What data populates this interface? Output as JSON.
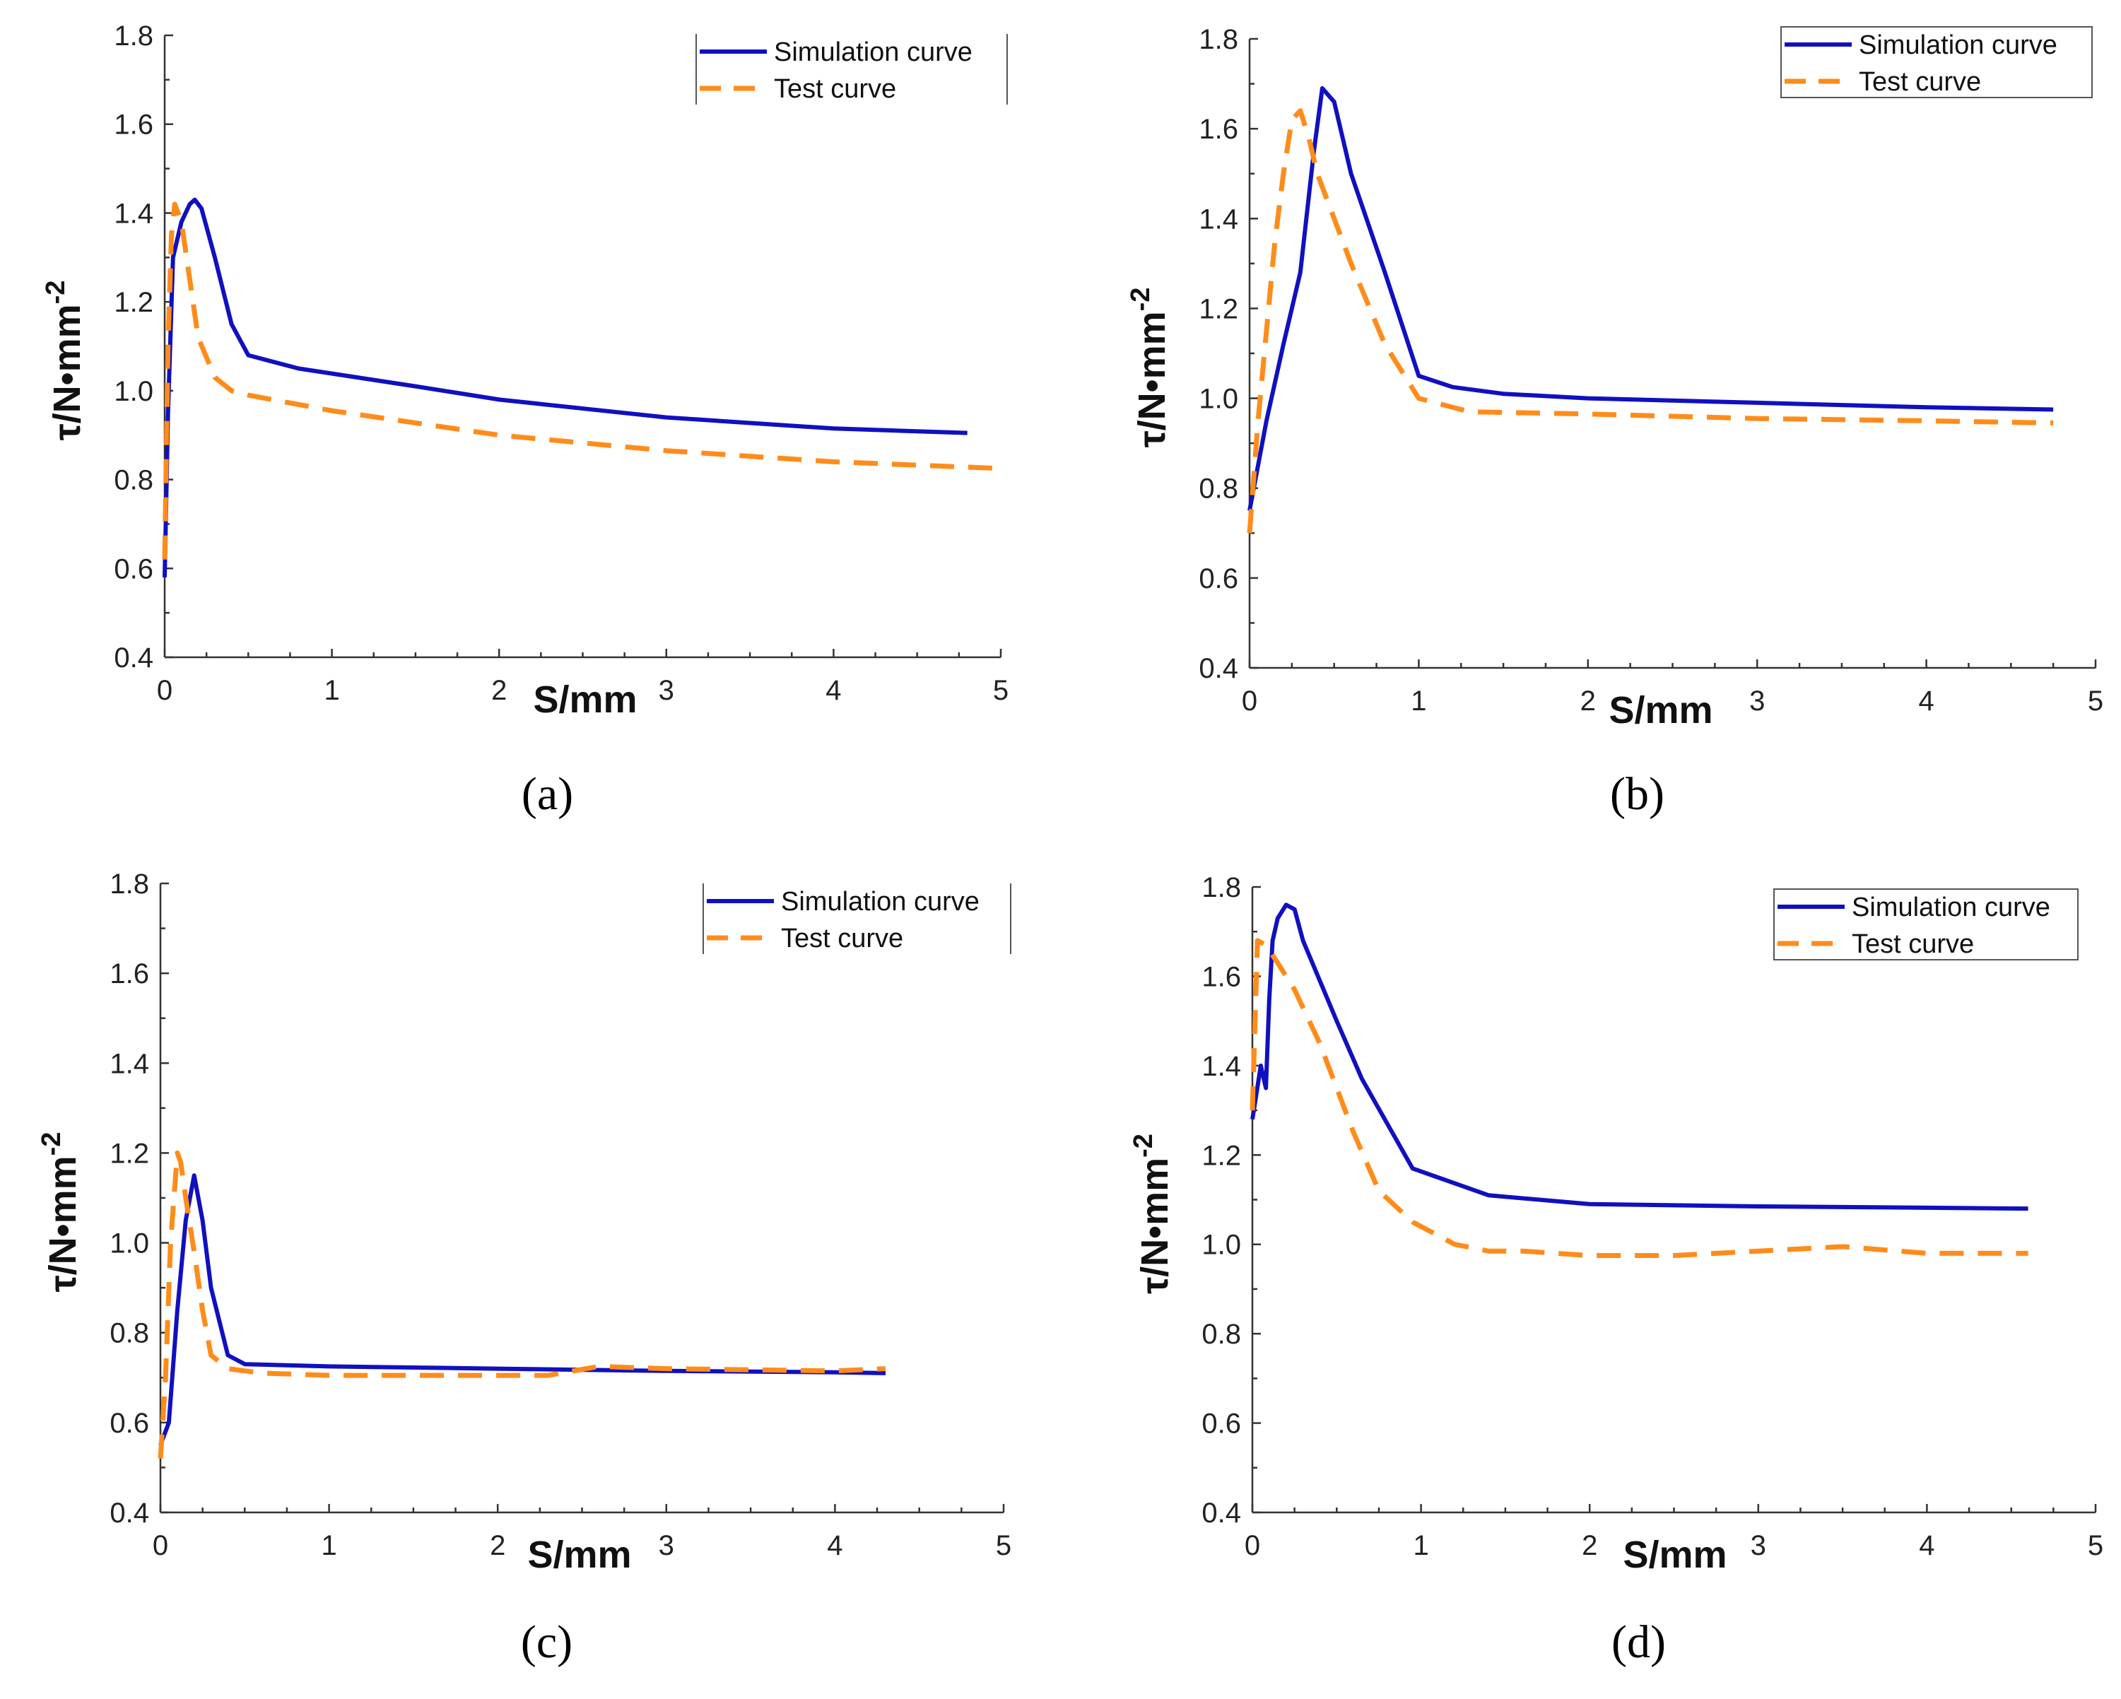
{
  "colors": {
    "simulation": "#1010c0",
    "test": "#ff8c1a",
    "axis": "#333333"
  },
  "chart_data": [
    {
      "type": "line",
      "panel_label": "(a)",
      "xlabel": "S/mm",
      "ylabel": "τ/N•mm",
      "ylabel_sup": "-2",
      "xlim": [
        0,
        5
      ],
      "ylim": [
        0.4,
        1.8
      ],
      "xticks": [
        "0",
        "1",
        "2",
        "3",
        "4",
        "5"
      ],
      "yticks": [
        "0.4",
        "0.6",
        "0.8",
        "1.0",
        "1.2",
        "1.4",
        "1.6",
        "1.8"
      ],
      "grid": false,
      "legend_box": "partial",
      "series": [
        {
          "name": "Simulation curve",
          "style": "solid",
          "x": [
            0,
            0.02,
            0.05,
            0.1,
            0.15,
            0.18,
            0.22,
            0.3,
            0.4,
            0.5,
            0.8,
            1.5,
            2.0,
            3.0,
            4.0,
            4.8
          ],
          "y": [
            0.58,
            0.95,
            1.3,
            1.38,
            1.42,
            1.43,
            1.41,
            1.3,
            1.15,
            1.08,
            1.05,
            1.01,
            0.98,
            0.94,
            0.915,
            0.905
          ]
        },
        {
          "name": "Test curve",
          "style": "dashed",
          "x": [
            0,
            0.02,
            0.04,
            0.06,
            0.1,
            0.15,
            0.2,
            0.3,
            0.4,
            0.5,
            1.0,
            2.0,
            3.0,
            4.0,
            5.0
          ],
          "y": [
            0.62,
            1.1,
            1.35,
            1.42,
            1.38,
            1.25,
            1.12,
            1.03,
            1.0,
            0.99,
            0.955,
            0.9,
            0.865,
            0.84,
            0.825
          ]
        }
      ]
    },
    {
      "type": "line",
      "panel_label": "(b)",
      "xlabel": "S/mm",
      "ylabel": "τ/N•mm",
      "ylabel_sup": "-2",
      "xlim": [
        0,
        5
      ],
      "ylim": [
        0.4,
        1.8
      ],
      "xticks": [
        "0",
        "1",
        "2",
        "3",
        "4",
        "5"
      ],
      "yticks": [
        "0.4",
        "0.6",
        "0.8",
        "1.0",
        "1.2",
        "1.4",
        "1.6",
        "1.8"
      ],
      "grid": false,
      "legend_box": "full",
      "series": [
        {
          "name": "Simulation curve",
          "style": "solid",
          "x": [
            0,
            0.1,
            0.2,
            0.3,
            0.38,
            0.43,
            0.5,
            0.6,
            0.8,
            1.0,
            1.2,
            1.5,
            2.0,
            2.5,
            3.0,
            4.0,
            4.75
          ],
          "y": [
            0.75,
            0.95,
            1.12,
            1.28,
            1.55,
            1.69,
            1.66,
            1.5,
            1.28,
            1.05,
            1.025,
            1.01,
            1.0,
            0.995,
            0.99,
            0.98,
            0.975
          ]
        },
        {
          "name": "Test curve",
          "style": "dashed",
          "x": [
            0,
            0.05,
            0.1,
            0.15,
            0.2,
            0.25,
            0.3,
            0.35,
            0.4,
            0.5,
            0.6,
            0.8,
            1.0,
            1.3,
            2.0,
            3.0,
            4.0,
            4.75
          ],
          "y": [
            0.7,
            0.95,
            1.15,
            1.35,
            1.5,
            1.62,
            1.64,
            1.58,
            1.5,
            1.4,
            1.3,
            1.12,
            1.0,
            0.97,
            0.965,
            0.955,
            0.95,
            0.945
          ]
        }
      ]
    },
    {
      "type": "line",
      "panel_label": "(c)",
      "xlabel": "S/mm",
      "ylabel": "τ/N•mm",
      "ylabel_sup": "-2",
      "xlim": [
        0,
        5
      ],
      "ylim": [
        0.4,
        1.8
      ],
      "xticks": [
        "0",
        "1",
        "2",
        "3",
        "4",
        "5"
      ],
      "yticks": [
        "0.4",
        "0.6",
        "0.8",
        "1.0",
        "1.2",
        "1.4",
        "1.6",
        "1.8"
      ],
      "grid": false,
      "legend_box": "partial",
      "series": [
        {
          "name": "Simulation curve",
          "style": "solid",
          "x": [
            0,
            0.05,
            0.1,
            0.15,
            0.2,
            0.25,
            0.3,
            0.4,
            0.5,
            1.0,
            2.0,
            3.0,
            4.0,
            4.3
          ],
          "y": [
            0.55,
            0.6,
            0.85,
            1.05,
            1.15,
            1.05,
            0.9,
            0.75,
            0.73,
            0.725,
            0.72,
            0.715,
            0.712,
            0.71
          ]
        },
        {
          "name": "Test curve",
          "style": "dashed",
          "x": [
            0,
            0.03,
            0.06,
            0.1,
            0.12,
            0.15,
            0.2,
            0.25,
            0.3,
            0.4,
            0.6,
            1.0,
            2.0,
            2.3,
            2.6,
            3.0,
            4.0,
            4.3
          ],
          "y": [
            0.52,
            0.7,
            1.0,
            1.2,
            1.18,
            1.1,
            0.98,
            0.85,
            0.75,
            0.72,
            0.71,
            0.705,
            0.705,
            0.705,
            0.725,
            0.72,
            0.715,
            0.72
          ]
        }
      ]
    },
    {
      "type": "line",
      "panel_label": "(d)",
      "xlabel": "S/mm",
      "ylabel": "τ/N•mm",
      "ylabel_sup": "-2",
      "xlim": [
        0,
        5
      ],
      "ylim": [
        0.4,
        1.8
      ],
      "xticks": [
        "0",
        "1",
        "2",
        "3",
        "4",
        "5"
      ],
      "yticks": [
        "0.4",
        "0.6",
        "0.8",
        "1.0",
        "1.2",
        "1.4",
        "1.6",
        "1.8"
      ],
      "grid": false,
      "legend_box": "full",
      "series": [
        {
          "name": "Simulation curve",
          "style": "solid",
          "x": [
            0,
            0.05,
            0.08,
            0.1,
            0.12,
            0.15,
            0.2,
            0.25,
            0.3,
            0.5,
            0.65,
            0.95,
            1.4,
            2.0,
            3.0,
            4.0,
            4.6
          ],
          "y": [
            1.28,
            1.4,
            1.35,
            1.55,
            1.68,
            1.73,
            1.76,
            1.75,
            1.68,
            1.5,
            1.37,
            1.17,
            1.11,
            1.09,
            1.085,
            1.082,
            1.08
          ]
        },
        {
          "name": "Test curve",
          "style": "dashed",
          "x": [
            0,
            0.03,
            0.08,
            0.15,
            0.25,
            0.4,
            0.6,
            0.75,
            0.95,
            1.2,
            1.4,
            1.6,
            2.0,
            2.5,
            3.0,
            3.5,
            4.0,
            4.6
          ],
          "y": [
            1.3,
            1.68,
            1.67,
            1.63,
            1.57,
            1.45,
            1.25,
            1.12,
            1.05,
            1.0,
            0.985,
            0.985,
            0.975,
            0.975,
            0.985,
            0.995,
            0.98,
            0.98
          ]
        }
      ]
    }
  ]
}
